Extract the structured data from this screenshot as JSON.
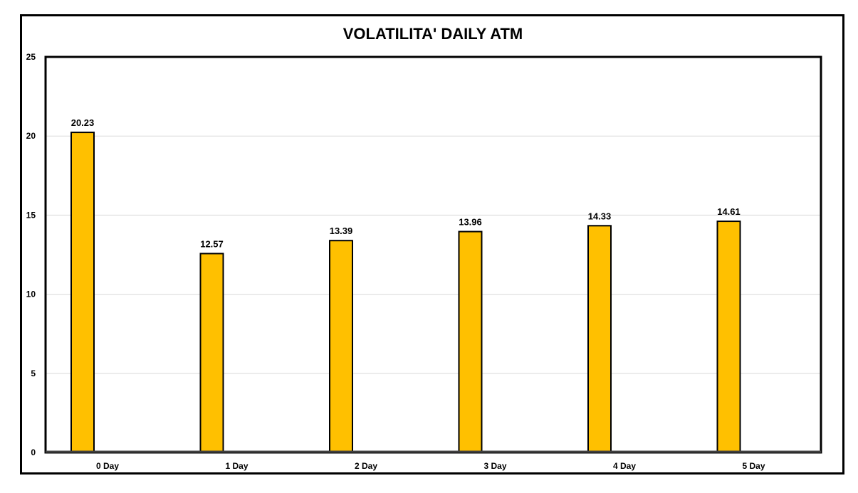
{
  "chart_data": {
    "type": "bar",
    "title": "VOLATILITA' DAILY ATM",
    "categories": [
      "0 Day",
      "1 Day",
      "2 Day",
      "3 Day",
      "4 Day",
      "5 Day"
    ],
    "values": [
      20.23,
      12.57,
      13.39,
      13.96,
      14.33,
      14.61
    ],
    "data_labels": [
      "20.23",
      "12.57",
      "13.39",
      "13.96",
      "14.33",
      "14.61"
    ],
    "xlabel": "",
    "ylabel": "",
    "ylim": [
      0,
      25
    ],
    "yticks": [
      0,
      5,
      10,
      15,
      20,
      25
    ],
    "grid": true,
    "legend": "none",
    "colors": {
      "bar_fill": "#FFC000",
      "bar_stroke": "#000000",
      "gridline": "#D9D9D9",
      "frame": "#000000"
    }
  }
}
